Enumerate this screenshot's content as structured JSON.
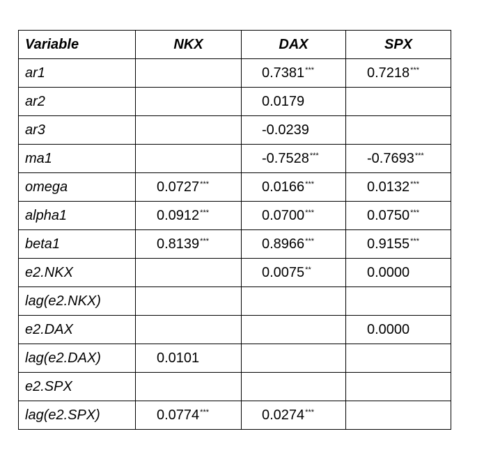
{
  "table": {
    "headers": [
      "Variable",
      "NKX",
      "DAX",
      "SPX"
    ],
    "rows": [
      {
        "variable": "ar1",
        "nkx": "",
        "nkx_sig": "",
        "dax": "0.7381",
        "dax_sig": "***",
        "spx": "0.7218",
        "spx_sig": "***"
      },
      {
        "variable": "ar2",
        "nkx": "",
        "nkx_sig": "",
        "dax": "0.0179",
        "dax_sig": "",
        "spx": "",
        "spx_sig": ""
      },
      {
        "variable": "ar3",
        "nkx": "",
        "nkx_sig": "",
        "dax": "-0.0239",
        "dax_sig": "",
        "spx": "",
        "spx_sig": ""
      },
      {
        "variable": "ma1",
        "nkx": "",
        "nkx_sig": "",
        "dax": "-0.7528",
        "dax_sig": "***",
        "spx": "-0.7693",
        "spx_sig": "***"
      },
      {
        "variable": "omega",
        "nkx": "0.0727",
        "nkx_sig": "***",
        "dax": "0.0166",
        "dax_sig": "***",
        "spx": "0.0132",
        "spx_sig": "***"
      },
      {
        "variable": "alpha1",
        "nkx": "0.0912",
        "nkx_sig": "***",
        "dax": "0.0700",
        "dax_sig": "***",
        "spx": "0.0750",
        "spx_sig": "***"
      },
      {
        "variable": "beta1",
        "nkx": "0.8139",
        "nkx_sig": "***",
        "dax": "0.8966",
        "dax_sig": "***",
        "spx": "0.9155",
        "spx_sig": "***"
      },
      {
        "variable": "e2.NKX",
        "nkx": "",
        "nkx_sig": "",
        "dax": "0.0075",
        "dax_sig": "**",
        "spx": "0.0000",
        "spx_sig": ""
      },
      {
        "variable": "lag(e2.NKX)",
        "nkx": "",
        "nkx_sig": "",
        "dax": "",
        "dax_sig": "",
        "spx": "",
        "spx_sig": ""
      },
      {
        "variable": "e2.DAX",
        "nkx": "",
        "nkx_sig": "",
        "dax": "",
        "dax_sig": "",
        "spx": "0.0000",
        "spx_sig": ""
      },
      {
        "variable": "lag(e2.DAX)",
        "nkx": "0.0101",
        "nkx_sig": "",
        "dax": "",
        "dax_sig": "",
        "spx": "",
        "spx_sig": ""
      },
      {
        "variable": "e2.SPX",
        "nkx": "",
        "nkx_sig": "",
        "dax": "",
        "dax_sig": "",
        "spx": "",
        "spx_sig": ""
      },
      {
        "variable": "lag(e2.SPX)",
        "nkx": "0.0774",
        "nkx_sig": "***",
        "dax": "0.0274",
        "dax_sig": "***",
        "spx": "",
        "spx_sig": ""
      }
    ]
  }
}
